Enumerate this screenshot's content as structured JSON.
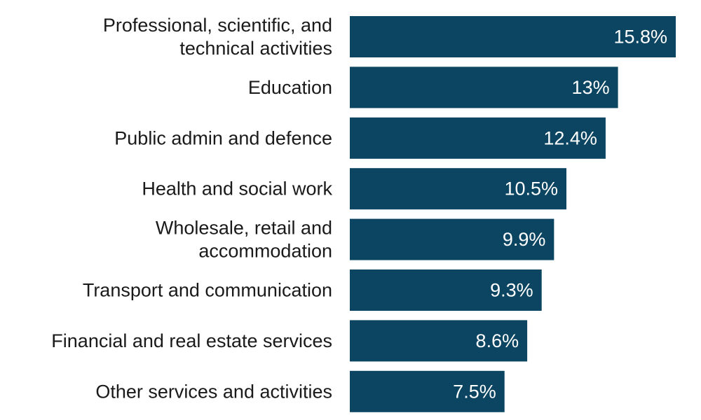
{
  "chart_data": {
    "type": "bar",
    "orientation": "horizontal",
    "categories": [
      "Professional, scientific, and technical activities",
      "Education",
      "Public admin and defence",
      "Health and social work",
      "Wholesale, retail and accommodation",
      "Transport and communication",
      "Financial and real estate services",
      "Other services and activities"
    ],
    "category_lines": [
      [
        "Professional, scientific, and",
        "technical activities"
      ],
      [
        "Education"
      ],
      [
        "Public admin and defence"
      ],
      [
        "Health and social work"
      ],
      [
        "Wholesale, retail and",
        "accommodation"
      ],
      [
        "Transport and communication"
      ],
      [
        "Financial and real estate services"
      ],
      [
        "Other services and activities"
      ]
    ],
    "values": [
      15.8,
      13,
      12.4,
      10.5,
      9.9,
      9.3,
      8.6,
      7.5
    ],
    "value_labels": [
      "15.8%",
      "13%",
      "12.4%",
      "10.5%",
      "9.9%",
      "9.3%",
      "8.6%",
      "7.5%"
    ],
    "xlim": [
      0,
      16
    ],
    "grid": false,
    "legend": "none",
    "bar_color": "#0b4562",
    "label_color": "#ffffff"
  }
}
